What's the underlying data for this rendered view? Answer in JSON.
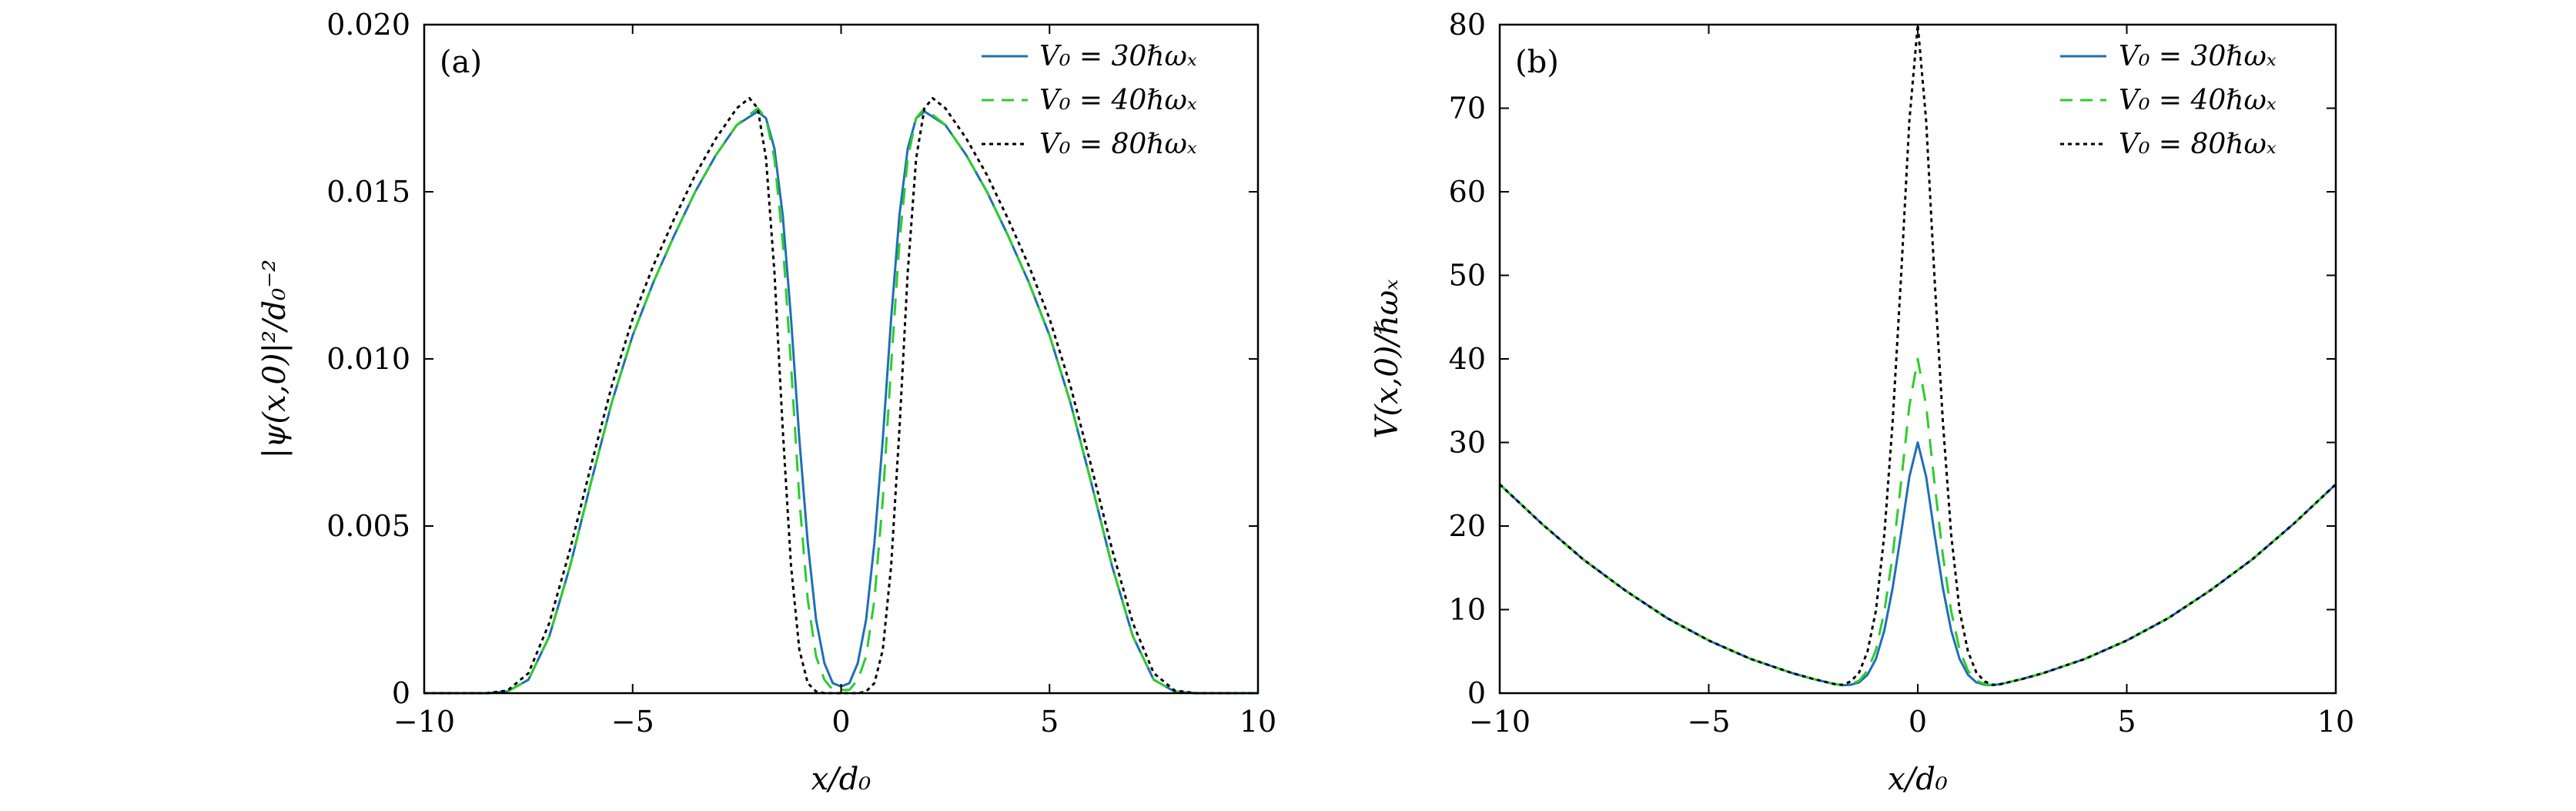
{
  "chart_data": [
    {
      "panel": "(a)",
      "type": "line",
      "title": "",
      "xlabel": "x/d₀",
      "ylabel": "|ψ(x,0)|²/d₀⁻²",
      "xlim": [
        -10,
        10
      ],
      "ylim": [
        0,
        0.02
      ],
      "xticks": [
        -10,
        -5,
        0,
        5,
        10
      ],
      "xtick_labels": [
        "−10",
        "−5",
        "0",
        "5",
        "10"
      ],
      "yticks": [
        0,
        0.005,
        0.01,
        0.015,
        0.02
      ],
      "ytick_labels": [
        "0",
        "0.005",
        "0.010",
        "0.015",
        "0.020"
      ],
      "legend_position": "top-right",
      "grid": false,
      "series": [
        {
          "name": "V₀ = 30ℏωₓ",
          "color": "#1f6fb4",
          "dash": "solid",
          "x": [
            -10,
            -8.5,
            -8,
            -7.5,
            -7,
            -6.5,
            -6,
            -5.5,
            -5,
            -4.5,
            -4,
            -3.5,
            -3,
            -2.5,
            -2,
            -1.8,
            -1.6,
            -1.4,
            -1.2,
            -1.0,
            -0.8,
            -0.6,
            -0.4,
            -0.2,
            0,
            0.2,
            0.4,
            0.6,
            0.8,
            1.0,
            1.2,
            1.4,
            1.6,
            1.8,
            2,
            2.5,
            3,
            3.5,
            4,
            4.5,
            5,
            5.5,
            6,
            6.5,
            7,
            7.5,
            8,
            8.5,
            10
          ],
          "y": [
            0,
            0,
            5e-05,
            0.0004,
            0.0017,
            0.0038,
            0.0063,
            0.0087,
            0.0107,
            0.0123,
            0.0137,
            0.015,
            0.0161,
            0.017,
            0.0174,
            0.0172,
            0.0163,
            0.0143,
            0.0112,
            0.0076,
            0.0045,
            0.0022,
            0.0009,
            0.0003,
            0.0002,
            0.0003,
            0.0009,
            0.0022,
            0.0045,
            0.0076,
            0.0112,
            0.0143,
            0.0163,
            0.0172,
            0.0174,
            0.017,
            0.0161,
            0.015,
            0.0137,
            0.0123,
            0.0107,
            0.0087,
            0.0063,
            0.0038,
            0.0017,
            0.0004,
            5e-05,
            0,
            0
          ]
        },
        {
          "name": "V₀ = 40ℏωₓ",
          "color": "#2ecc2e",
          "dash": "long-dash",
          "x": [
            -10,
            -8.5,
            -8,
            -7.5,
            -7,
            -6.5,
            -6,
            -5.5,
            -5,
            -4.5,
            -4,
            -3.5,
            -3,
            -2.5,
            -2,
            -1.8,
            -1.6,
            -1.4,
            -1.2,
            -1.0,
            -0.8,
            -0.6,
            -0.4,
            -0.2,
            0,
            0.2,
            0.4,
            0.6,
            0.8,
            1.0,
            1.2,
            1.4,
            1.6,
            1.8,
            2,
            2.5,
            3,
            3.5,
            4,
            4.5,
            5,
            5.5,
            6,
            6.5,
            7,
            7.5,
            8,
            8.5,
            10
          ],
          "y": [
            0,
            0,
            5e-05,
            0.0004,
            0.0017,
            0.0038,
            0.0063,
            0.0087,
            0.0107,
            0.0123,
            0.0137,
            0.015,
            0.0161,
            0.017,
            0.0175,
            0.0172,
            0.016,
            0.0135,
            0.0098,
            0.0058,
            0.0028,
            0.0011,
            0.0004,
            0.0001,
            0.0001,
            0.0001,
            0.0004,
            0.0011,
            0.0028,
            0.0058,
            0.0098,
            0.0135,
            0.016,
            0.0172,
            0.0175,
            0.017,
            0.0161,
            0.015,
            0.0137,
            0.0123,
            0.0107,
            0.0087,
            0.0063,
            0.0038,
            0.0017,
            0.0004,
            5e-05,
            0,
            0
          ]
        },
        {
          "name": "V₀ = 80ℏωₓ",
          "color": "#000000",
          "dash": "dotted",
          "x": [
            -10,
            -8.5,
            -8,
            -7.5,
            -7,
            -6.5,
            -6,
            -5.5,
            -5,
            -4.5,
            -4,
            -3.5,
            -3,
            -2.5,
            -2.2,
            -2,
            -1.8,
            -1.6,
            -1.4,
            -1.2,
            -1.0,
            -0.8,
            -0.6,
            -0.4,
            -0.2,
            0,
            0.2,
            0.4,
            0.6,
            0.8,
            1.0,
            1.2,
            1.4,
            1.6,
            1.8,
            2,
            2.2,
            2.5,
            3,
            3.5,
            4,
            4.5,
            5,
            5.5,
            6,
            6.5,
            7,
            7.5,
            8,
            8.5,
            10
          ],
          "y": [
            0,
            0,
            8e-05,
            0.0006,
            0.0021,
            0.0043,
            0.0068,
            0.0092,
            0.0112,
            0.0128,
            0.0142,
            0.0155,
            0.0166,
            0.0175,
            0.0178,
            0.0175,
            0.016,
            0.0126,
            0.0079,
            0.0038,
            0.0013,
            0.0003,
            5e-05,
            0,
            0,
            0,
            0,
            0,
            5e-05,
            0.0003,
            0.0013,
            0.0038,
            0.0079,
            0.0126,
            0.016,
            0.0175,
            0.0178,
            0.0175,
            0.0166,
            0.0155,
            0.0142,
            0.0128,
            0.0112,
            0.0092,
            0.0068,
            0.0043,
            0.0021,
            0.0006,
            8e-05,
            0,
            0
          ]
        }
      ]
    },
    {
      "panel": "(b)",
      "type": "line",
      "title": "",
      "xlabel": "x/d₀",
      "ylabel": "V(x,0)/ℏωₓ",
      "xlim": [
        -10,
        10
      ],
      "ylim": [
        0,
        80
      ],
      "xticks": [
        -10,
        -5,
        0,
        5,
        10
      ],
      "xtick_labels": [
        "−10",
        "−5",
        "0",
        "5",
        "10"
      ],
      "yticks": [
        0,
        10,
        20,
        30,
        40,
        50,
        60,
        70,
        80
      ],
      "ytick_labels": [
        "0",
        "10",
        "20",
        "30",
        "40",
        "50",
        "60",
        "70",
        "80"
      ],
      "legend_position": "top-right",
      "grid": false,
      "series": [
        {
          "name": "V₀ = 30ℏωₓ",
          "color": "#1f6fb4",
          "dash": "solid",
          "x": [
            -10,
            -9,
            -8,
            -7,
            -6,
            -5,
            -4,
            -3,
            -2.5,
            -2,
            -1.8,
            -1.6,
            -1.4,
            -1.2,
            -1.0,
            -0.8,
            -0.6,
            -0.4,
            -0.2,
            0,
            0.2,
            0.4,
            0.6,
            0.8,
            1.0,
            1.2,
            1.4,
            1.6,
            1.8,
            2,
            2.5,
            3,
            4,
            5,
            6,
            7,
            8,
            9,
            10
          ],
          "y": [
            25,
            20.3,
            16.0,
            12.3,
            9.0,
            6.3,
            4.1,
            2.4,
            1.7,
            1.1,
            0.95,
            1.0,
            1.3,
            2.2,
            4.1,
            7.5,
            12.6,
            19.1,
            25.9,
            30.0,
            25.9,
            19.1,
            12.6,
            7.5,
            4.1,
            2.2,
            1.3,
            1.0,
            0.95,
            1.1,
            1.7,
            2.4,
            4.1,
            6.3,
            9.0,
            12.3,
            16.0,
            20.3,
            25
          ]
        },
        {
          "name": "V₀ = 40ℏωₓ",
          "color": "#2ecc2e",
          "dash": "long-dash",
          "x": [
            -10,
            -9,
            -8,
            -7,
            -6,
            -5,
            -4,
            -3,
            -2.5,
            -2,
            -1.8,
            -1.6,
            -1.4,
            -1.2,
            -1.0,
            -0.8,
            -0.6,
            -0.4,
            -0.2,
            0,
            0.2,
            0.4,
            0.6,
            0.8,
            1.0,
            1.2,
            1.4,
            1.6,
            1.8,
            2,
            2.5,
            3,
            4,
            5,
            6,
            7,
            8,
            9,
            10
          ],
          "y": [
            25,
            20.3,
            16.0,
            12.3,
            9.0,
            6.3,
            4.1,
            2.4,
            1.7,
            1.1,
            0.95,
            1.1,
            1.5,
            2.7,
            5.2,
            9.8,
            16.5,
            25.2,
            34.4,
            40.0,
            34.4,
            25.2,
            16.5,
            9.8,
            5.2,
            2.7,
            1.5,
            1.1,
            0.95,
            1.1,
            1.7,
            2.4,
            4.1,
            6.3,
            9.0,
            12.3,
            16.0,
            20.3,
            25
          ]
        },
        {
          "name": "V₀ = 80ℏωₓ",
          "color": "#000000",
          "dash": "dotted",
          "x": [
            -10,
            -9,
            -8,
            -7,
            -6,
            -5,
            -4,
            -3,
            -2.5,
            -2,
            -1.8,
            -1.6,
            -1.4,
            -1.2,
            -1.0,
            -0.8,
            -0.6,
            -0.4,
            -0.2,
            0,
            0.2,
            0.4,
            0.6,
            0.8,
            1.0,
            1.2,
            1.4,
            1.6,
            1.8,
            2,
            2.5,
            3,
            4,
            5,
            6,
            7,
            8,
            9,
            10
          ],
          "y": [
            25,
            20.3,
            16.0,
            12.3,
            9.0,
            6.3,
            4.1,
            2.4,
            1.7,
            1.1,
            1.0,
            1.4,
            2.5,
            5.0,
            9.9,
            19.0,
            32.5,
            49.8,
            68.5,
            80.0,
            68.5,
            49.8,
            32.5,
            19.0,
            9.9,
            5.0,
            2.5,
            1.4,
            1.0,
            1.1,
            1.7,
            2.4,
            4.1,
            6.3,
            9.0,
            12.3,
            16.0,
            20.3,
            25
          ]
        }
      ]
    }
  ]
}
